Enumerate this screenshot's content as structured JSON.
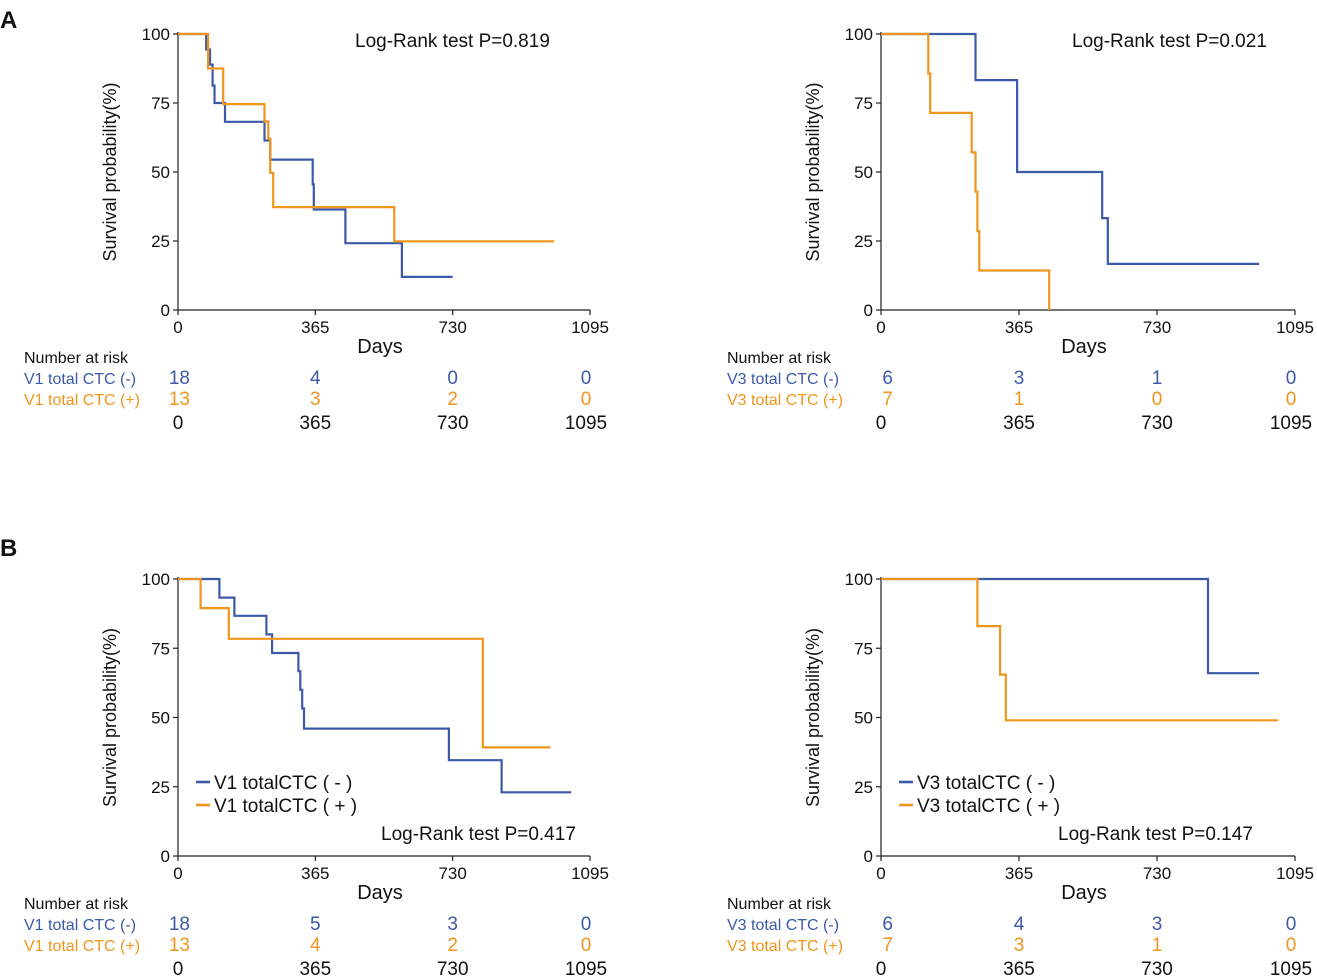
{
  "colors": {
    "negative": "#3d5aa8",
    "positive": "#f0951c",
    "axis": "#222222",
    "text": "#111111"
  },
  "panel_labels": [
    "A",
    "B"
  ],
  "chart_data": [
    {
      "type": "line",
      "id": "A1",
      "step": true,
      "title": "Log-Rank test P=0.819",
      "xlabel": "Days",
      "ylabel": "Survival probability(%)",
      "xlim": [
        0,
        1095
      ],
      "ylim": [
        0,
        100
      ],
      "xticks": [
        0,
        365,
        730,
        1095
      ],
      "yticks": [
        0,
        25,
        50,
        75,
        100
      ],
      "legend": [],
      "series": [
        {
          "name": "V1 total CTC (-)",
          "color": "negative",
          "points": [
            [
              0,
              100
            ],
            [
              75,
              100
            ],
            [
              75,
              94.4
            ],
            [
              85,
              94.4
            ],
            [
              85,
              88.9
            ],
            [
              92,
              88.9
            ],
            [
              92,
              81.3
            ],
            [
              97,
              81.3
            ],
            [
              97,
              75.0
            ],
            [
              125,
              75.0
            ],
            [
              125,
              68.2
            ],
            [
              230,
              68.2
            ],
            [
              230,
              61.4
            ],
            [
              245,
              61.4
            ],
            [
              245,
              54.5
            ],
            [
              358,
              54.5
            ],
            [
              358,
              45.5
            ],
            [
              361,
              45.5
            ],
            [
              361,
              36.4
            ],
            [
              445,
              36.4
            ],
            [
              445,
              24.2
            ],
            [
              595,
              24.2
            ],
            [
              595,
              12.0
            ],
            [
              730,
              12.0
            ]
          ]
        },
        {
          "name": "V1 total CTC (+)",
          "color": "positive",
          "points": [
            [
              0,
              100
            ],
            [
              80,
              100
            ],
            [
              80,
              87.5
            ],
            [
              120,
              87.5
            ],
            [
              120,
              74.6
            ],
            [
              230,
              74.6
            ],
            [
              230,
              68.3
            ],
            [
              240,
              68.3
            ],
            [
              240,
              62.1
            ],
            [
              245,
              62.1
            ],
            [
              245,
              49.7
            ],
            [
              253,
              49.7
            ],
            [
              253,
              37.3
            ],
            [
              575,
              37.3
            ],
            [
              575,
              24.9
            ],
            [
              1000,
              24.9
            ]
          ]
        }
      ],
      "risk_table": {
        "header": "Number at risk",
        "times": [
          "0",
          "365",
          "730",
          "1095"
        ],
        "rows": [
          {
            "label": "V1 total CTC (-)",
            "counts": [
              "18",
              "4",
              "0",
              "0"
            ],
            "color": "negative"
          },
          {
            "label": "V1 total CTC (+)",
            "counts": [
              "13",
              "3",
              "2",
              "0"
            ],
            "color": "positive"
          }
        ]
      }
    },
    {
      "type": "line",
      "id": "A2",
      "step": true,
      "title": "Log-Rank test P=0.021",
      "xlabel": "Days",
      "ylabel": "Survival probability(%)",
      "xlim": [
        0,
        1095
      ],
      "ylim": [
        0,
        100
      ],
      "xticks": [
        0,
        365,
        730,
        1095
      ],
      "yticks": [
        0,
        25,
        50,
        75,
        100
      ],
      "legend": [],
      "series": [
        {
          "name": "V3 total CTC (-)",
          "color": "negative",
          "points": [
            [
              0,
              100
            ],
            [
              250,
              100
            ],
            [
              250,
              83.3
            ],
            [
              360,
              83.3
            ],
            [
              360,
              50.0
            ],
            [
              585,
              50.0
            ],
            [
              585,
              33.3
            ],
            [
              600,
              33.3
            ],
            [
              600,
              16.7
            ],
            [
              1000,
              16.7
            ]
          ]
        },
        {
          "name": "V3 total CTC (+)",
          "color": "positive",
          "points": [
            [
              0,
              100
            ],
            [
              125,
              100
            ],
            [
              125,
              85.7
            ],
            [
              130,
              85.7
            ],
            [
              130,
              71.4
            ],
            [
              240,
              71.4
            ],
            [
              240,
              57.1
            ],
            [
              250,
              57.1
            ],
            [
              250,
              42.9
            ],
            [
              255,
              42.9
            ],
            [
              255,
              28.6
            ],
            [
              260,
              28.6
            ],
            [
              260,
              14.3
            ],
            [
              445,
              14.3
            ],
            [
              445,
              0
            ]
          ]
        }
      ],
      "risk_table": {
        "header": "Number at risk",
        "times": [
          "0",
          "365",
          "730",
          "1095"
        ],
        "rows": [
          {
            "label": "V3 total CTC (-)",
            "counts": [
              "6",
              "3",
              "1",
              "0"
            ],
            "color": "negative"
          },
          {
            "label": "V3 total CTC (+)",
            "counts": [
              "7",
              "1",
              "0",
              "0"
            ],
            "color": "positive"
          }
        ]
      }
    },
    {
      "type": "line",
      "id": "B1",
      "step": true,
      "title": "Log-Rank test P=0.417",
      "xlabel": "Days",
      "ylabel": "Survival probability(%)",
      "xlim": [
        0,
        1095
      ],
      "ylim": [
        0,
        100
      ],
      "xticks": [
        0,
        365,
        730,
        1095
      ],
      "yticks": [
        0,
        25,
        50,
        75,
        100
      ],
      "legend": [
        {
          "label": "V1 totalCTC ( - )",
          "color": "negative"
        },
        {
          "label": "V1 totalCTC ( + )",
          "color": "positive"
        }
      ],
      "series": [
        {
          "name": "V1 totalCTC ( - )",
          "color": "negative",
          "points": [
            [
              0,
              100
            ],
            [
              110,
              100
            ],
            [
              110,
              93.3
            ],
            [
              150,
              93.3
            ],
            [
              150,
              86.7
            ],
            [
              235,
              86.7
            ],
            [
              235,
              80.0
            ],
            [
              250,
              80.0
            ],
            [
              250,
              73.3
            ],
            [
              320,
              73.3
            ],
            [
              320,
              66.7
            ],
            [
              325,
              66.7
            ],
            [
              325,
              60.0
            ],
            [
              330,
              60.0
            ],
            [
              330,
              53.3
            ],
            [
              335,
              53.3
            ],
            [
              335,
              46.0
            ],
            [
              720,
              46.0
            ],
            [
              720,
              34.6
            ],
            [
              860,
              34.6
            ],
            [
              860,
              23.0
            ],
            [
              1045,
              23.0
            ]
          ]
        },
        {
          "name": "V1 totalCTC ( + )",
          "color": "positive",
          "points": [
            [
              0,
              100
            ],
            [
              60,
              100
            ],
            [
              60,
              89.5
            ],
            [
              135,
              89.5
            ],
            [
              135,
              78.4
            ],
            [
              810,
              78.4
            ],
            [
              810,
              39.2
            ],
            [
              990,
              39.2
            ]
          ]
        }
      ],
      "risk_table": {
        "header": "Number at risk",
        "times": [
          "0",
          "365",
          "730",
          "1095"
        ],
        "rows": [
          {
            "label": "V1 total CTC (-)",
            "counts": [
              "18",
              "5",
              "3",
              "0"
            ],
            "color": "negative"
          },
          {
            "label": "V1 total CTC (+)",
            "counts": [
              "13",
              "4",
              "2",
              "0"
            ],
            "color": "positive"
          }
        ]
      }
    },
    {
      "type": "line",
      "id": "B2",
      "step": true,
      "title": "Log-Rank test P=0.147",
      "xlabel": "Days",
      "ylabel": "Survival probability(%)",
      "xlim": [
        0,
        1095
      ],
      "ylim": [
        0,
        100
      ],
      "xticks": [
        0,
        365,
        730,
        1095
      ],
      "yticks": [
        0,
        25,
        50,
        75,
        100
      ],
      "legend": [
        {
          "label": "V3 totalCTC ( - )",
          "color": "negative"
        },
        {
          "label": "V3 totalCTC ( + )",
          "color": "positive"
        }
      ],
      "series": [
        {
          "name": "V3 totalCTC ( - )",
          "color": "negative",
          "points": [
            [
              0,
              100
            ],
            [
              865,
              100
            ],
            [
              865,
              66.0
            ],
            [
              1000,
              66.0
            ]
          ]
        },
        {
          "name": "V3 totalCTC ( + )",
          "color": "positive",
          "points": [
            [
              0,
              100
            ],
            [
              255,
              100
            ],
            [
              255,
              83.0
            ],
            [
              315,
              83.0
            ],
            [
              315,
              65.5
            ],
            [
              330,
              65.5
            ],
            [
              330,
              49.0
            ],
            [
              1050,
              49.0
            ]
          ]
        }
      ],
      "risk_table": {
        "header": "Number at risk",
        "times": [
          "0",
          "365",
          "730",
          "1095"
        ],
        "rows": [
          {
            "label": "V3 total CTC (-)",
            "counts": [
              "6",
              "4",
              "3",
              "0"
            ],
            "color": "negative"
          },
          {
            "label": "V3 total CTC (+)",
            "counts": [
              "7",
              "3",
              "1",
              "0"
            ],
            "color": "positive"
          }
        ]
      }
    }
  ]
}
